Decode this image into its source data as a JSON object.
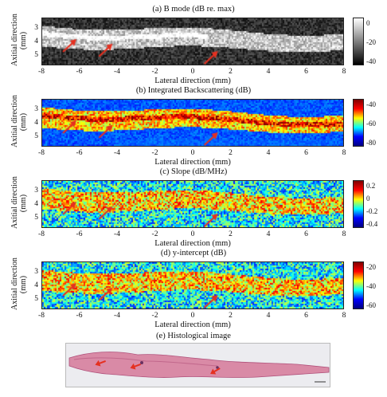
{
  "panels": [
    {
      "title": "(a)   B mode (dB re. max)",
      "cbar_ticks": [
        "0",
        "-20",
        "-40"
      ],
      "cmap": "gray"
    },
    {
      "title": "(b)   Integrated Backscattering (dB)",
      "cbar_ticks": [
        "-40",
        "-60",
        "-80"
      ],
      "cmap": "jet"
    },
    {
      "title": "(c)   Slope (dB/MHz)",
      "cbar_ticks": [
        "0.2",
        "0",
        "-0.2",
        "-0.4"
      ],
      "cmap": "jet"
    },
    {
      "title": "(d)   y-intercept (dB)",
      "cbar_ticks": [
        "-20",
        "-40",
        "-60"
      ],
      "cmap": "jet"
    }
  ],
  "axis": {
    "ylabel": "Axitial direction\n(mm)",
    "xlabel": "Lateral direction (mm)",
    "yticks": [
      "3",
      "4",
      "5"
    ],
    "xticks": [
      "-8",
      "-6",
      "-4",
      "-2",
      "0",
      "2",
      "4",
      "6",
      "8"
    ]
  },
  "histology": {
    "title": "(e) Histological image"
  },
  "colors": {
    "arrow": "#e53020",
    "tissue": "#d98aa6",
    "tissue_dark": "#b0507a"
  }
}
